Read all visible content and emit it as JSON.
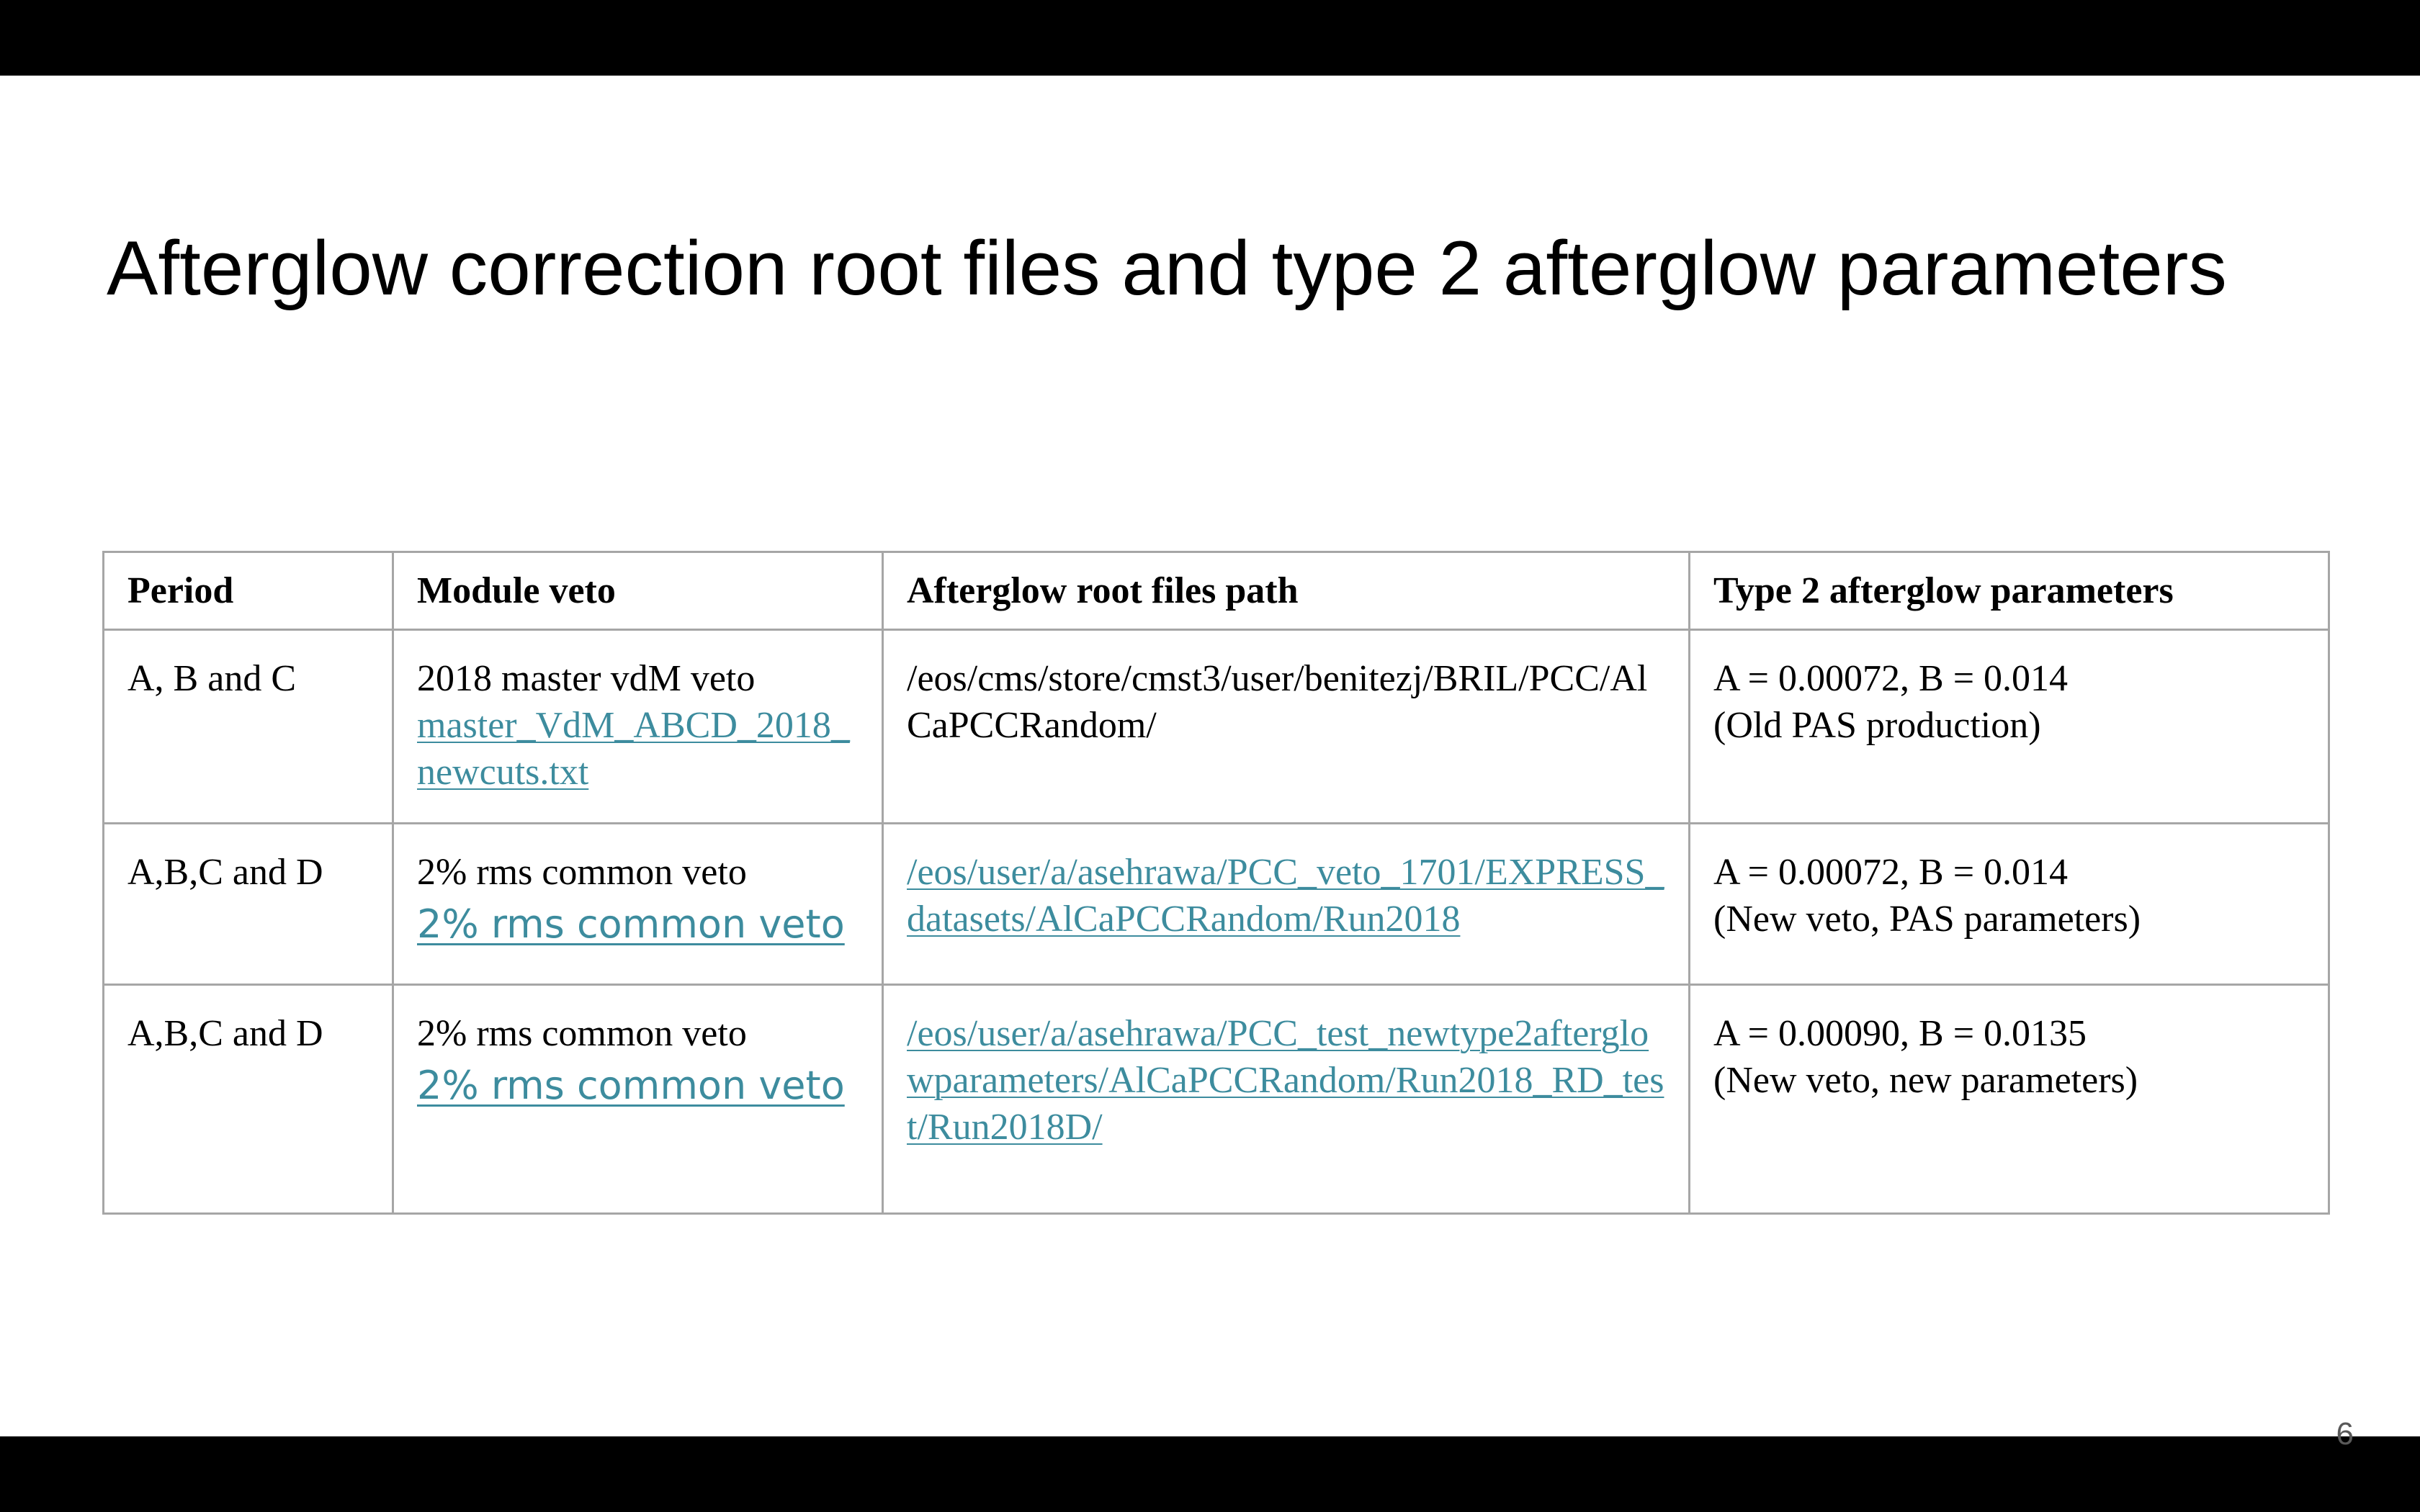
{
  "slide": {
    "title": "Afterglow correction root files and type 2 afterglow parameters",
    "page_number": "6"
  },
  "table": {
    "headers": [
      "Period",
      "Module veto",
      "Afterglow root files path",
      "Type 2 afterglow parameters"
    ],
    "rows": [
      {
        "period": "A, B and C",
        "veto_text": "2018 master vdM veto",
        "veto_link": "master_VdM_ABCD_2018_newcuts.txt",
        "path": "/eos/cms/store/cmst3/user/benitezj/BRIL/PCC/AlCaPCCRandom/",
        "params_line1": "A = 0.00072, B = 0.014",
        "params_line2": "(Old PAS production)"
      },
      {
        "period": "A,B,C and D",
        "veto_text": "2% rms common veto",
        "veto_link": "2% rms common veto",
        "path": "/eos/user/a/asehrawa/PCC_veto_1701/EXPRESS_datasets/AlCaPCCRandom/Run2018",
        "params_line1": "A = 0.00072, B = 0.014",
        "params_line2": "(New veto, PAS parameters)"
      },
      {
        "period": "A,B,C and D",
        "veto_text": "2% rms common veto",
        "veto_link": "2% rms common veto",
        "path": "/eos/user/a/asehrawa/PCC_test_newtype2afterglowparameters/AlCaPCCRandom/Run2018_RD_test/Run2018D/",
        "params_line1": "A = 0.00090, B = 0.0135",
        "params_line2": "(New veto, new parameters)"
      }
    ]
  },
  "colors": {
    "link": "#3d8c9e",
    "border": "#a6a6a6",
    "letterbox": "#000000"
  }
}
